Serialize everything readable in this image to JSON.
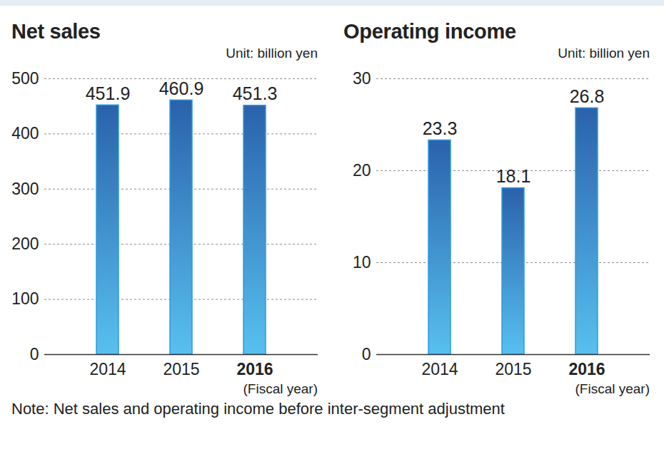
{
  "chart_data": [
    {
      "type": "bar",
      "title": "Net sales",
      "subtitle": "Unit: billion yen",
      "x_label": "(Fiscal year)",
      "categories": [
        "2014",
        "2015",
        "2016"
      ],
      "values": [
        451.9,
        460.9,
        451.3
      ],
      "color": "#2a62ab",
      "ylim": [
        0,
        500
      ],
      "yticks": [
        0,
        100,
        200,
        300,
        400,
        500
      ],
      "grid": true,
      "data_labels": true
    },
    {
      "type": "bar",
      "title": "Operating income",
      "subtitle": "Unit: billion yen",
      "x_label": "(Fiscal year)",
      "categories": [
        "2014",
        "2015",
        "2016"
      ],
      "values": [
        23.3,
        18.1,
        26.8
      ],
      "color": "#2a62ab",
      "ylim": [
        0,
        30
      ],
      "yticks": [
        0,
        10,
        20,
        30
      ],
      "grid": true,
      "data_labels": true
    }
  ],
  "note": "Note: Net sales and operating income before inter-segment adjustment"
}
